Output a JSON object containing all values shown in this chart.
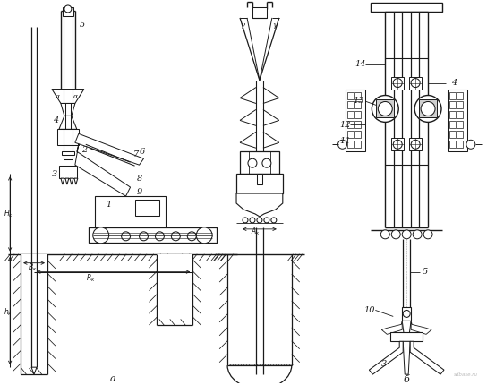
{
  "bg_color": "#ffffff",
  "line_color": "#1a1a1a",
  "fig_width": 5.44,
  "fig_height": 4.3,
  "dpi": 100,
  "label_a": "a",
  "label_b": "б",
  "watermark": "sdbase.ru"
}
